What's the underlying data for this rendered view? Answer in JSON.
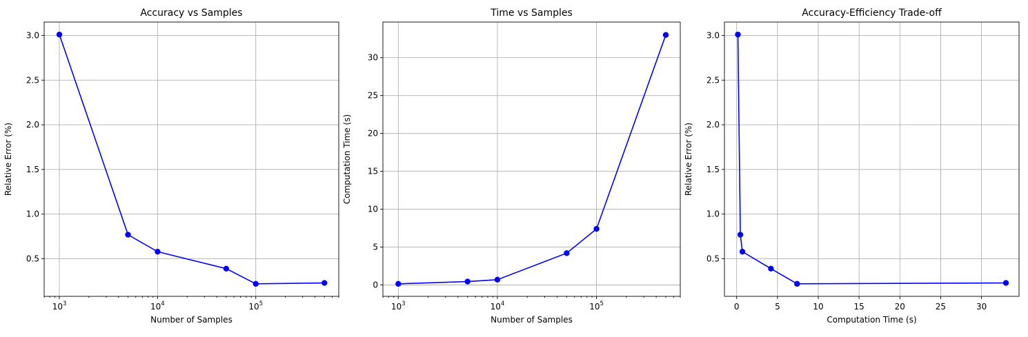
{
  "chart_data": [
    {
      "type": "line",
      "title": "Accuracy vs Samples",
      "xlabel": "Number of Samples",
      "ylabel": "Relative Error (%)",
      "xscale": "log",
      "xlim": [
        700,
        700000
      ],
      "ylim": [
        0.08,
        3.15
      ],
      "xticks": [
        1000,
        10000,
        100000
      ],
      "xtick_labels": [
        {
          "base": "10",
          "exp": "3"
        },
        {
          "base": "10",
          "exp": "4"
        },
        {
          "base": "10",
          "exp": "5"
        }
      ],
      "yticks": [
        0.5,
        1.0,
        1.5,
        2.0,
        2.5,
        3.0
      ],
      "ytick_labels": [
        "0.5",
        "1.0",
        "1.5",
        "2.0",
        "2.5",
        "3.0"
      ],
      "grid": true,
      "color": "#0000ff",
      "marker": "circle",
      "x": [
        1000,
        5000,
        10000,
        50000,
        100000,
        500000
      ],
      "y": [
        3.01,
        0.77,
        0.58,
        0.39,
        0.22,
        0.23
      ]
    },
    {
      "type": "line",
      "title": "Time vs Samples",
      "xlabel": "Number of Samples",
      "ylabel": "Computation Time (s)",
      "xscale": "log",
      "xlim": [
        700,
        700000
      ],
      "ylim": [
        -1.5,
        34.7
      ],
      "xticks": [
        1000,
        10000,
        100000
      ],
      "xtick_labels": [
        {
          "base": "10",
          "exp": "3"
        },
        {
          "base": "10",
          "exp": "4"
        },
        {
          "base": "10",
          "exp": "5"
        }
      ],
      "yticks": [
        0,
        5,
        10,
        15,
        20,
        25,
        30
      ],
      "ytick_labels": [
        "0",
        "5",
        "10",
        "15",
        "20",
        "25",
        "30"
      ],
      "grid": true,
      "color": "#0000ff",
      "marker": "circle",
      "x": [
        1000,
        5000,
        10000,
        50000,
        100000,
        500000
      ],
      "y": [
        0.15,
        0.45,
        0.7,
        4.2,
        7.4,
        33.0
      ]
    },
    {
      "type": "line",
      "title": "Accuracy-Efficiency Trade-off",
      "xlabel": "Computation Time (s)",
      "ylabel": "Relative Error (%)",
      "xscale": "linear",
      "xlim": [
        -1.5,
        34.6
      ],
      "ylim": [
        0.08,
        3.15
      ],
      "xticks": [
        0,
        5,
        10,
        15,
        20,
        25,
        30
      ],
      "xtick_labels": [
        "0",
        "5",
        "10",
        "15",
        "20",
        "25",
        "30"
      ],
      "yticks": [
        0.5,
        1.0,
        1.5,
        2.0,
        2.5,
        3.0
      ],
      "ytick_labels": [
        "0.5",
        "1.0",
        "1.5",
        "2.0",
        "2.5",
        "3.0"
      ],
      "grid": true,
      "color": "#0000ff",
      "marker": "circle",
      "x": [
        0.15,
        0.45,
        0.7,
        4.2,
        7.4,
        33.0
      ],
      "y": [
        3.01,
        0.77,
        0.58,
        0.39,
        0.22,
        0.23
      ]
    }
  ]
}
